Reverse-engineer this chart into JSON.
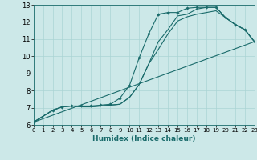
{
  "xlabel": "Humidex (Indice chaleur)",
  "xlim": [
    0,
    23
  ],
  "ylim": [
    6,
    13
  ],
  "xticks": [
    0,
    1,
    2,
    3,
    4,
    5,
    6,
    7,
    8,
    9,
    10,
    11,
    12,
    13,
    14,
    15,
    16,
    17,
    18,
    19,
    20,
    21,
    22,
    23
  ],
  "yticks": [
    6,
    7,
    8,
    9,
    10,
    11,
    12,
    13
  ],
  "bg_color": "#cce8e8",
  "line_color": "#1a6b6b",
  "grid_color": "#aad4d4",
  "lines": [
    {
      "x": [
        0,
        2,
        3,
        4,
        5,
        6,
        7,
        8,
        9,
        10,
        11,
        12,
        13,
        14,
        15,
        16,
        17,
        18,
        19,
        20,
        21,
        22,
        23
      ],
      "y": [
        6.15,
        6.85,
        7.05,
        7.1,
        7.1,
        7.1,
        7.15,
        7.2,
        7.55,
        8.3,
        9.9,
        11.3,
        12.45,
        12.55,
        12.55,
        12.8,
        12.85,
        12.85,
        12.85,
        12.25,
        11.85,
        11.55,
        10.85
      ],
      "with_markers": true
    },
    {
      "x": [
        0,
        2,
        3,
        4,
        5,
        6,
        7,
        8,
        9,
        10,
        11,
        12,
        13,
        14,
        15,
        16,
        17,
        18,
        19,
        20,
        21,
        22,
        23
      ],
      "y": [
        6.15,
        6.85,
        7.05,
        7.1,
        7.05,
        7.05,
        7.1,
        7.15,
        7.2,
        7.6,
        8.35,
        9.55,
        10.85,
        11.55,
        12.35,
        12.45,
        12.75,
        12.85,
        12.85,
        12.25,
        11.85,
        11.55,
        10.85
      ],
      "with_markers": false
    },
    {
      "x": [
        0,
        2,
        3,
        4,
        5,
        6,
        7,
        8,
        9,
        10,
        11,
        12,
        13,
        14,
        15,
        16,
        17,
        18,
        19,
        20,
        21,
        22,
        23
      ],
      "y": [
        6.15,
        6.85,
        7.05,
        7.1,
        7.05,
        7.05,
        7.1,
        7.15,
        7.2,
        7.6,
        8.35,
        9.55,
        10.4,
        11.3,
        12.05,
        12.3,
        12.45,
        12.55,
        12.65,
        12.25,
        11.85,
        11.55,
        10.85
      ],
      "with_markers": false
    },
    {
      "x": [
        0,
        23
      ],
      "y": [
        6.15,
        10.85
      ],
      "with_markers": false
    }
  ]
}
